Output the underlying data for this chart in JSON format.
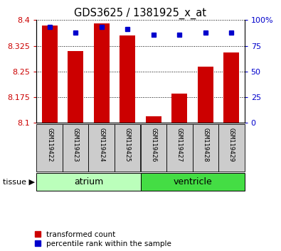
{
  "title": "GDS3625 / 1381925_x_at",
  "samples": [
    "GSM119422",
    "GSM119423",
    "GSM119424",
    "GSM119425",
    "GSM119426",
    "GSM119427",
    "GSM119428",
    "GSM119429"
  ],
  "transformed_counts": [
    8.385,
    8.31,
    8.39,
    8.355,
    8.12,
    8.185,
    8.265,
    8.305
  ],
  "percentile_ranks": [
    93,
    88,
    93,
    91,
    86,
    86,
    88,
    88
  ],
  "groups": [
    {
      "label": "atrium",
      "start": 0,
      "end": 4,
      "color": "#bbffbb"
    },
    {
      "label": "ventricle",
      "start": 4,
      "end": 8,
      "color": "#44dd44"
    }
  ],
  "ylim_left": [
    8.1,
    8.4
  ],
  "ylim_right": [
    0,
    100
  ],
  "yticks_left": [
    8.1,
    8.175,
    8.25,
    8.325,
    8.4
  ],
  "yticks_right": [
    0,
    25,
    50,
    75,
    100
  ],
  "bar_color": "#cc0000",
  "dot_color": "#0000cc",
  "left_tick_color": "#cc0000",
  "right_tick_color": "#0000cc",
  "xlabel_area_color": "#cccccc",
  "tissue_label": "tissue",
  "legend_items": [
    {
      "label": "transformed count",
      "color": "#cc0000"
    },
    {
      "label": "percentile rank within the sample",
      "color": "#0000cc"
    }
  ]
}
